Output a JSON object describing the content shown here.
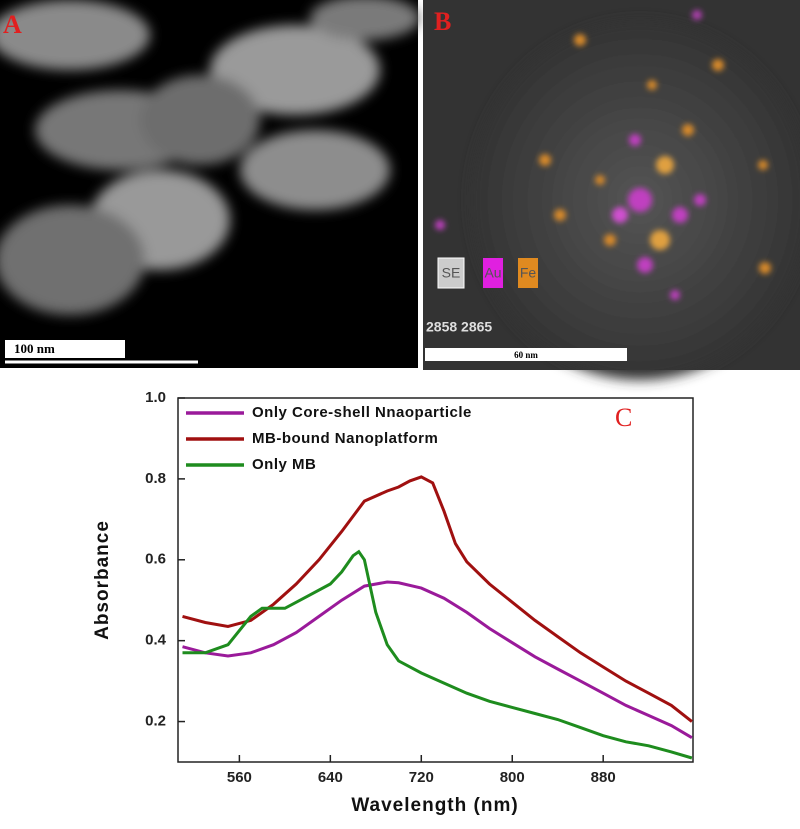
{
  "panels": {
    "a": {
      "label": "A",
      "scale_bar": "100 nm"
    },
    "b": {
      "label": "B",
      "elements": [
        "SE",
        "Au",
        "Fe"
      ],
      "frame_text": "2858 2865",
      "scale_bar": "60 nm"
    }
  },
  "chart_data": {
    "type": "line",
    "annotation": "C",
    "x_label": "Wavelength (nm)",
    "y_label": "Absorbance",
    "xlim": [
      506,
      959
    ],
    "ylim": [
      0.1,
      1.0
    ],
    "xticks": [
      560,
      640,
      720,
      800,
      880
    ],
    "yticks": [
      {
        "value": 1.0,
        "label": "1.0"
      },
      0.8,
      0.6,
      0.4,
      0.2
    ],
    "legend": "upper left",
    "series": [
      {
        "name": "Only Core-shell Nnaoparticle",
        "color": "#9a1a9a",
        "x": [
          510,
          530,
          550,
          570,
          590,
          610,
          630,
          650,
          670,
          690,
          700,
          720,
          740,
          760,
          780,
          800,
          820,
          840,
          860,
          880,
          900,
          920,
          940,
          958
        ],
        "values": [
          0.385,
          0.37,
          0.362,
          0.37,
          0.39,
          0.42,
          0.46,
          0.5,
          0.535,
          0.545,
          0.543,
          0.53,
          0.505,
          0.47,
          0.43,
          0.395,
          0.36,
          0.33,
          0.3,
          0.27,
          0.24,
          0.215,
          0.19,
          0.16
        ]
      },
      {
        "name": "MB-bound Nanoplatform",
        "color": "#a01010",
        "x": [
          510,
          530,
          550,
          570,
          590,
          610,
          630,
          650,
          670,
          690,
          700,
          710,
          720,
          730,
          740,
          750,
          760,
          780,
          800,
          820,
          840,
          860,
          880,
          900,
          920,
          940,
          958
        ],
        "values": [
          0.46,
          0.445,
          0.435,
          0.45,
          0.49,
          0.54,
          0.6,
          0.67,
          0.745,
          0.77,
          0.78,
          0.795,
          0.805,
          0.79,
          0.72,
          0.64,
          0.595,
          0.54,
          0.495,
          0.45,
          0.41,
          0.37,
          0.335,
          0.3,
          0.27,
          0.24,
          0.2
        ]
      },
      {
        "name": "Only MB",
        "color": "#1e8c1e",
        "x": [
          510,
          530,
          550,
          570,
          580,
          600,
          620,
          640,
          650,
          660,
          665,
          670,
          680,
          690,
          700,
          720,
          740,
          760,
          780,
          800,
          820,
          840,
          860,
          880,
          900,
          920,
          940,
          958
        ],
        "values": [
          0.37,
          0.37,
          0.39,
          0.46,
          0.48,
          0.48,
          0.51,
          0.54,
          0.57,
          0.61,
          0.62,
          0.6,
          0.47,
          0.39,
          0.35,
          0.32,
          0.295,
          0.27,
          0.25,
          0.235,
          0.22,
          0.205,
          0.185,
          0.165,
          0.15,
          0.14,
          0.125,
          0.11
        ]
      }
    ]
  }
}
